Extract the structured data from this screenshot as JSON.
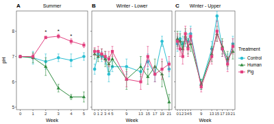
{
  "chart_data": [
    {
      "type": "line",
      "label": "A",
      "title": "Summer",
      "x_label": "Week",
      "y_label": "pH",
      "x": [
        0,
        1,
        2,
        3,
        4,
        5
      ],
      "xlim": [
        -0.3,
        5.3
      ],
      "xticks": [
        0,
        1,
        2,
        3,
        4,
        5
      ],
      "ylim": [
        4.9,
        8.8
      ],
      "yticks": [
        5,
        6,
        7,
        8
      ],
      "grid": false,
      "series": [
        {
          "name": "Control",
          "color": "#2bbfd3",
          "marker": "circle",
          "values": [
            7.0,
            6.95,
            6.8,
            6.95,
            6.85,
            7.0
          ],
          "errors": [
            0.05,
            0.25,
            0.3,
            0.15,
            0.25,
            0.15
          ]
        },
        {
          "name": "Human",
          "color": "#2e8b3e",
          "marker": "triangle",
          "values": [
            7.0,
            6.95,
            6.6,
            5.75,
            5.4,
            5.4
          ],
          "errors": [
            0.05,
            0.2,
            0.35,
            0.15,
            0.1,
            0.2
          ]
        },
        {
          "name": "Pig",
          "color": "#e2407f",
          "marker": "square",
          "values": [
            7.0,
            7.0,
            7.75,
            7.8,
            7.6,
            7.45
          ],
          "errors": [
            0.05,
            0.1,
            0.05,
            0.08,
            0.1,
            0.1
          ]
        }
      ],
      "annotations": [
        {
          "text": "*",
          "x": 2,
          "y": 7.95
        },
        {
          "text": "*",
          "x": 3,
          "y": 8.0
        },
        {
          "text": "*",
          "x": 4,
          "y": 7.8
        }
      ]
    },
    {
      "type": "line",
      "label": "B",
      "title": "Winter - Lower",
      "x_label": "Week",
      "tick_labels": "x",
      "x": [
        0,
        1,
        2,
        3,
        4,
        5,
        9,
        13,
        15,
        17,
        19,
        21
      ],
      "xlim": [
        -0.8,
        21.8
      ],
      "xticks": [
        0,
        1,
        2,
        3,
        4,
        5,
        9,
        13,
        15,
        17,
        19,
        21
      ],
      "ylim": [
        4.9,
        8.8
      ],
      "yticks": [
        5,
        6,
        7,
        8
      ],
      "grid": false,
      "series": [
        {
          "name": "Control",
          "color": "#2bbfd3",
          "marker": "circle",
          "values": [
            6.5,
            7.1,
            7.0,
            6.9,
            6.3,
            6.6,
            6.6,
            6.4,
            6.8,
            6.3,
            7.6,
            6.5
          ],
          "errors": [
            0.2,
            0.15,
            0.2,
            0.2,
            0.3,
            0.2,
            0.3,
            0.3,
            0.3,
            0.3,
            0.2,
            0.3
          ]
        },
        {
          "name": "Human",
          "color": "#2e8b3e",
          "marker": "triangle",
          "values": [
            7.1,
            7.0,
            7.1,
            6.9,
            6.7,
            6.9,
            6.1,
            6.6,
            6.2,
            6.6,
            6.3,
            5.2
          ],
          "errors": [
            0.2,
            0.2,
            0.2,
            0.3,
            0.3,
            0.3,
            0.4,
            0.4,
            0.3,
            0.3,
            0.5,
            0.3
          ]
        },
        {
          "name": "Pig",
          "color": "#e2407f",
          "marker": "square",
          "values": [
            7.2,
            7.2,
            7.1,
            7.0,
            6.9,
            7.2,
            6.1,
            6.0,
            7.0,
            6.3,
            6.5,
            6.7
          ],
          "errors": [
            0.15,
            0.2,
            0.2,
            0.2,
            0.3,
            0.2,
            0.3,
            0.3,
            0.4,
            0.3,
            0.4,
            0.3
          ]
        }
      ]
    },
    {
      "type": "line",
      "label": "C",
      "title": "Winter - Upper",
      "x_label": "Week",
      "tick_labels": "x",
      "legend": "right",
      "legend_title": "Treatment",
      "x": [
        0,
        1,
        2,
        3,
        4,
        5,
        9,
        13,
        15,
        17,
        19,
        21
      ],
      "xlim": [
        -0.8,
        21.8
      ],
      "xticks": [
        0,
        1,
        2,
        3,
        4,
        5,
        9,
        13,
        15,
        17,
        19,
        21
      ],
      "ylim": [
        4.9,
        8.8
      ],
      "yticks": [
        5,
        6,
        7,
        8
      ],
      "grid": false,
      "series": [
        {
          "name": "Control",
          "color": "#2bbfd3",
          "marker": "circle",
          "values": [
            7.5,
            7.7,
            7.5,
            7.7,
            7.6,
            7.9,
            5.9,
            7.3,
            8.6,
            7.3,
            6.8,
            7.5
          ],
          "errors": [
            0.3,
            0.3,
            0.3,
            0.3,
            0.3,
            0.3,
            0.2,
            0.3,
            0.2,
            0.3,
            0.3,
            0.3
          ]
        },
        {
          "name": "Human",
          "color": "#2e8b3e",
          "marker": "triangle",
          "values": [
            7.7,
            7.6,
            7.3,
            7.8,
            7.4,
            7.5,
            5.9,
            7.1,
            7.9,
            7.4,
            6.9,
            7.2
          ],
          "errors": [
            0.3,
            0.3,
            0.3,
            0.3,
            0.3,
            0.3,
            0.2,
            0.3,
            0.3,
            0.3,
            0.3,
            0.3
          ]
        },
        {
          "name": "Pig",
          "color": "#e2407f",
          "marker": "square",
          "values": [
            7.6,
            7.3,
            7.0,
            7.9,
            7.3,
            7.8,
            5.8,
            7.0,
            8.0,
            7.3,
            6.7,
            7.4
          ],
          "errors": [
            0.3,
            0.3,
            0.3,
            0.3,
            0.3,
            0.3,
            0.2,
            0.3,
            0.4,
            0.3,
            0.3,
            0.3
          ]
        }
      ]
    }
  ]
}
